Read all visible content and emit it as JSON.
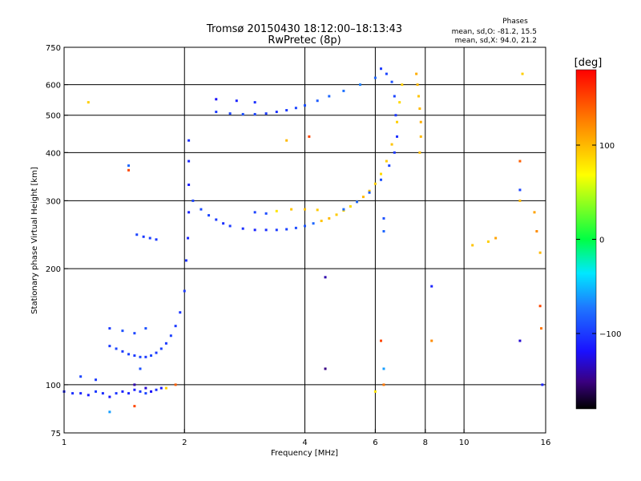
{
  "header": {
    "title": "Tromsø 20150430 18:12:00–18:13:43",
    "subtitle": "RwPretec (8p)",
    "phases_title": "Phases",
    "phases_o": "mean, sd,O: -81.2, 15.5",
    "phases_x": "mean, sd,X:  94.0, 21.2"
  },
  "colorbar": {
    "label": "[deg]",
    "range": [
      -180,
      180
    ],
    "ticks": [
      {
        "value": 100,
        "label": "100"
      },
      {
        "value": 0,
        "label": "0"
      },
      {
        "value": -100,
        "label": "−100"
      }
    ]
  },
  "chart_data": {
    "type": "scatter",
    "xlabel": "Frequency [MHz]",
    "ylabel": "Stationary phase Virtual Height [km]",
    "xscale": "log",
    "yscale": "log",
    "xlim": [
      1,
      16
    ],
    "ylim": [
      75,
      750
    ],
    "xticks": [
      {
        "v": 1,
        "label": "1"
      },
      {
        "v": 2,
        "label": "2"
      },
      {
        "v": 4,
        "label": "4"
      },
      {
        "v": 6,
        "label": "6"
      },
      {
        "v": 8,
        "label": "8"
      },
      {
        "v": 10,
        "label": "10"
      },
      {
        "v": 16,
        "label": "16"
      }
    ],
    "yticks": [
      {
        "v": 75,
        "label": "75"
      },
      {
        "v": 100,
        "label": "100"
      },
      {
        "v": 200,
        "label": "200"
      },
      {
        "v": 300,
        "label": "300"
      },
      {
        "v": 400,
        "label": "400"
      },
      {
        "v": 500,
        "label": "500"
      },
      {
        "v": 600,
        "label": "600"
      },
      {
        "v": 750,
        "label": "750"
      }
    ],
    "grid_x": [
      2,
      4,
      6,
      8,
      10
    ],
    "grid_y": [
      100,
      200,
      300,
      400,
      500,
      600
    ],
    "series": [
      {
        "color_by": "phase_deg",
        "points": [
          [
            1.0,
            96,
            -110
          ],
          [
            1.05,
            95,
            -105
          ],
          [
            1.1,
            95,
            -108
          ],
          [
            1.15,
            94,
            -112
          ],
          [
            1.2,
            96,
            -100
          ],
          [
            1.25,
            95,
            -106
          ],
          [
            1.3,
            93,
            -115
          ],
          [
            1.35,
            95,
            -102
          ],
          [
            1.4,
            96,
            -110
          ],
          [
            1.45,
            95,
            -108
          ],
          [
            1.5,
            97,
            -112
          ],
          [
            1.55,
            96,
            -100
          ],
          [
            1.6,
            95,
            -95
          ],
          [
            1.65,
            96,
            -120
          ],
          [
            1.7,
            97,
            -105
          ],
          [
            1.75,
            98,
            -115
          ],
          [
            1.1,
            105,
            -95
          ],
          [
            1.2,
            103,
            -100
          ],
          [
            1.5,
            100,
            -140
          ],
          [
            1.6,
            98,
            -130
          ],
          [
            1.3,
            126,
            -100
          ],
          [
            1.35,
            124,
            -95
          ],
          [
            1.4,
            122,
            -100
          ],
          [
            1.45,
            120,
            -96
          ],
          [
            1.5,
            119,
            -100
          ],
          [
            1.55,
            118,
            -94
          ],
          [
            1.6,
            118,
            -100
          ],
          [
            1.65,
            119,
            -95
          ],
          [
            1.7,
            121,
            -100
          ],
          [
            1.75,
            124,
            -96
          ],
          [
            1.8,
            128,
            -100
          ],
          [
            1.85,
            134,
            -97
          ],
          [
            1.9,
            142,
            -100
          ],
          [
            1.95,
            154,
            -102
          ],
          [
            2.0,
            175,
            -100
          ],
          [
            2.02,
            210,
            -105
          ],
          [
            2.04,
            240,
            -110
          ],
          [
            1.3,
            140,
            -100
          ],
          [
            1.4,
            138,
            -90
          ],
          [
            1.5,
            136,
            -95
          ],
          [
            1.6,
            140,
            -90
          ],
          [
            1.52,
            245,
            -95
          ],
          [
            1.58,
            242,
            -100
          ],
          [
            1.64,
            240,
            -98
          ],
          [
            1.7,
            238,
            -100
          ],
          [
            2.05,
            280,
            -110
          ],
          [
            2.05,
            330,
            -112
          ],
          [
            2.05,
            380,
            -108
          ],
          [
            2.05,
            430,
            -105
          ],
          [
            2.1,
            300,
            -95
          ],
          [
            2.2,
            285,
            -92
          ],
          [
            2.3,
            275,
            -95
          ],
          [
            2.4,
            268,
            -100
          ],
          [
            2.5,
            262,
            -105
          ],
          [
            2.6,
            258,
            -100
          ],
          [
            2.8,
            254,
            -105
          ],
          [
            3.0,
            252,
            -110
          ],
          [
            3.2,
            252,
            -105
          ],
          [
            3.4,
            252,
            -100
          ],
          [
            3.6,
            253,
            -96
          ],
          [
            3.8,
            255,
            -92
          ],
          [
            4.0,
            258,
            -88
          ],
          [
            4.2,
            262,
            -80
          ],
          [
            4.4,
            266,
            95
          ],
          [
            4.6,
            270,
            100
          ],
          [
            4.8,
            276,
            92
          ],
          [
            5.0,
            283,
            88
          ],
          [
            5.2,
            290,
            85
          ],
          [
            5.4,
            298,
            90
          ],
          [
            5.6,
            307,
            100
          ],
          [
            5.8,
            318,
            95
          ],
          [
            6.0,
            332,
            90
          ],
          [
            6.2,
            352,
            85
          ],
          [
            6.4,
            380,
            92
          ],
          [
            6.6,
            420,
            95
          ],
          [
            6.8,
            480,
            90
          ],
          [
            6.9,
            540,
            85
          ],
          [
            7.0,
            600,
            90
          ],
          [
            2.4,
            510,
            -100
          ],
          [
            2.6,
            505,
            -95
          ],
          [
            2.8,
            503,
            -90
          ],
          [
            3.0,
            503,
            -95
          ],
          [
            3.2,
            505,
            -100
          ],
          [
            3.4,
            510,
            -105
          ],
          [
            3.6,
            515,
            -100
          ],
          [
            3.8,
            522,
            -95
          ],
          [
            4.0,
            530,
            -90
          ],
          [
            4.3,
            545,
            -85
          ],
          [
            4.6,
            560,
            -80
          ],
          [
            5.0,
            578,
            -75
          ],
          [
            5.5,
            600,
            -70
          ],
          [
            6.0,
            625,
            -80
          ],
          [
            2.4,
            550,
            -120
          ],
          [
            2.7,
            545,
            -110
          ],
          [
            3.0,
            540,
            -105
          ],
          [
            3.0,
            280,
            -96
          ],
          [
            3.2,
            278,
            -92
          ],
          [
            3.4,
            282,
            80
          ],
          [
            3.7,
            285,
            95
          ],
          [
            4.0,
            285,
            98
          ],
          [
            4.3,
            284,
            92
          ],
          [
            6.2,
            660,
            -100
          ],
          [
            6.4,
            640,
            -95
          ],
          [
            6.6,
            610,
            -90
          ],
          [
            6.7,
            560,
            -95
          ],
          [
            6.75,
            500,
            -100
          ],
          [
            6.8,
            440,
            -105
          ],
          [
            6.7,
            400,
            -100
          ],
          [
            6.5,
            370,
            -95
          ],
          [
            6.2,
            340,
            -90
          ],
          [
            5.8,
            315,
            -85
          ],
          [
            5.4,
            298,
            -80
          ],
          [
            5.0,
            285,
            -78
          ],
          [
            7.6,
            640,
            105
          ],
          [
            7.65,
            600,
            100
          ],
          [
            7.7,
            560,
            95
          ],
          [
            7.75,
            520,
            100
          ],
          [
            7.8,
            480,
            105
          ],
          [
            7.8,
            440,
            100
          ],
          [
            7.75,
            400,
            98
          ],
          [
            8.3,
            180,
            -110
          ],
          [
            8.3,
            130,
            120
          ],
          [
            6.2,
            130,
            150
          ],
          [
            6.3,
            110,
            -60
          ],
          [
            6.3,
            100,
            130
          ],
          [
            6.0,
            96,
            80
          ],
          [
            6.3,
            250,
            -80
          ],
          [
            6.3,
            270,
            -90
          ],
          [
            4.5,
            190,
            -140
          ],
          [
            4.5,
            110,
            -150
          ],
          [
            3.6,
            430,
            100
          ],
          [
            4.1,
            440,
            150
          ],
          [
            13.8,
            320,
            -95
          ],
          [
            13.8,
            300,
            100
          ],
          [
            14.0,
            640,
            90
          ],
          [
            13.8,
            380,
            140
          ],
          [
            13.8,
            130,
            -130
          ],
          [
            15.0,
            280,
            110
          ],
          [
            15.2,
            250,
            120
          ],
          [
            15.5,
            220,
            100
          ],
          [
            15.5,
            160,
            150
          ],
          [
            15.6,
            140,
            130
          ],
          [
            15.7,
            100,
            -110
          ],
          [
            1.15,
            540,
            90
          ],
          [
            1.45,
            370,
            -80
          ],
          [
            1.45,
            360,
            150
          ],
          [
            1.55,
            110,
            -90
          ],
          [
            1.8,
            98,
            90
          ],
          [
            1.9,
            100,
            140
          ],
          [
            1.5,
            88,
            150
          ],
          [
            1.3,
            85,
            -60
          ],
          [
            11.5,
            235,
            90
          ],
          [
            12.0,
            240,
            110
          ],
          [
            10.5,
            230,
            95
          ]
        ]
      }
    ]
  }
}
